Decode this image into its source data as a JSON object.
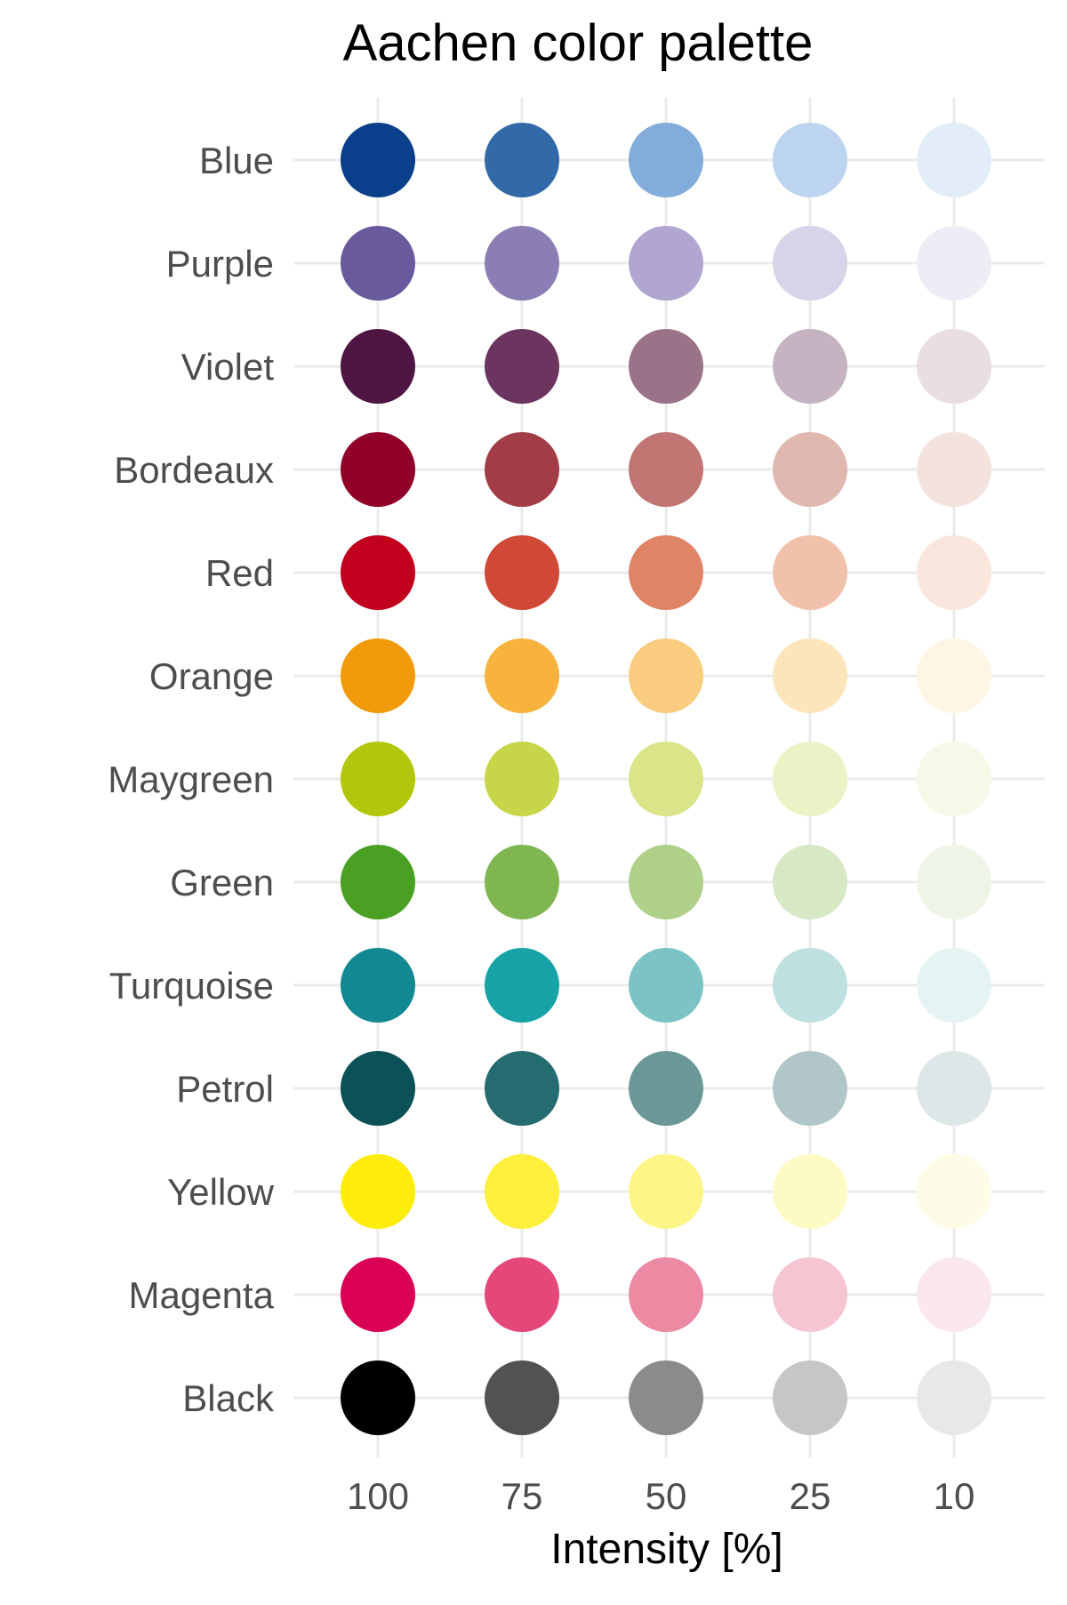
{
  "chart_data": {
    "type": "scatter",
    "title": "Aachen color palette",
    "xlabel": "Intensity [%]",
    "ylabel": "",
    "x_categories": [
      "100",
      "75",
      "50",
      "25",
      "10"
    ],
    "y_categories": [
      "Blue",
      "Purple",
      "Violet",
      "Bordeaux",
      "Red",
      "Orange",
      "Maygreen",
      "Green",
      "Turquoise",
      "Petrol",
      "Yellow",
      "Magenta",
      "Black"
    ],
    "grid": true,
    "legend": "none",
    "colors": {
      "Blue": [
        "#0A3F8C",
        "#3169A9",
        "#82ACDB",
        "#BCD4EE",
        "#E2EDF8"
      ],
      "Purple": [
        "#685A9C",
        "#8B7EB4",
        "#B0A6D0",
        "#D7D3E8",
        "#EEECF5"
      ],
      "Violet": [
        "#4E1542",
        "#6C3560",
        "#9A7389",
        "#C6B3C1",
        "#E8DEE4"
      ],
      "Bordeaux": [
        "#900028",
        "#A23C47",
        "#C17673",
        "#E0B8B0",
        "#F3E2DE"
      ],
      "Red": [
        "#C0001C",
        "#D04937",
        "#E08468",
        "#F1C1AC",
        "#FAE6DD"
      ],
      "Orange": [
        "#F19A0A",
        "#F8B33F",
        "#FACC80",
        "#FDE5BB",
        "#FEF5E4"
      ],
      "Maygreen": [
        "#B2C70B",
        "#C7D649",
        "#D9E588",
        "#EBF2C5",
        "#F6F9E8"
      ],
      "Green": [
        "#49A023",
        "#7FB650",
        "#AED088",
        "#D7E8C4",
        "#EEF5E7"
      ],
      "Turquoise": [
        "#128892",
        "#17A2A8",
        "#7BC3C5",
        "#BFE0E1",
        "#E6F3F3"
      ],
      "Petrol": [
        "#0A5257",
        "#246C70",
        "#6B9897",
        "#B0C6C8",
        "#DEE7E7"
      ],
      "Yellow": [
        "#FEEC0A",
        "#FEF03C",
        "#FEF587",
        "#FEFAC3",
        "#FEFCE7"
      ],
      "Magenta": [
        "#DA0054",
        "#E44878",
        "#EC89A3",
        "#F5C5D1",
        "#FBE8EC"
      ],
      "Black": [
        "#000000",
        "#515254",
        "#8A8B8D",
        "#C4C6C7",
        "#E7E8E8"
      ]
    },
    "styles": {
      "background": "#FFFFFF",
      "grid_color": "#EBEBEB",
      "axis_text_color": "#4D4D4D",
      "title_color": "#000000"
    }
  }
}
